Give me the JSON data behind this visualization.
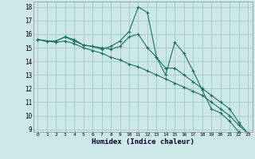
{
  "xlabel": "Humidex (Indice chaleur)",
  "bg_color": "#cce8e8",
  "grid_color": "#aacccc",
  "line_color": "#1a7060",
  "x_values": [
    0,
    1,
    2,
    3,
    4,
    5,
    6,
    7,
    8,
    9,
    10,
    11,
    12,
    13,
    14,
    15,
    16,
    17,
    18,
    19,
    20,
    21,
    22,
    23
  ],
  "series1": [
    15.6,
    15.5,
    15.5,
    15.8,
    15.6,
    15.2,
    15.1,
    14.9,
    15.1,
    15.5,
    16.2,
    18.0,
    17.6,
    14.3,
    13.0,
    15.4,
    14.6,
    13.3,
    11.9,
    10.5,
    10.2,
    9.6,
    8.8,
    8.7
  ],
  "series2": [
    15.6,
    15.5,
    15.5,
    15.8,
    15.5,
    15.2,
    15.1,
    15.0,
    14.9,
    15.1,
    15.8,
    16.0,
    15.0,
    14.3,
    13.5,
    13.5,
    13.0,
    12.5,
    12.0,
    11.5,
    11.0,
    10.5,
    9.5,
    8.7
  ],
  "series3": [
    15.6,
    15.5,
    15.4,
    15.5,
    15.3,
    15.0,
    14.8,
    14.6,
    14.3,
    14.1,
    13.8,
    13.6,
    13.3,
    13.0,
    12.7,
    12.4,
    12.1,
    11.8,
    11.5,
    11.0,
    10.5,
    10.0,
    9.3,
    8.7
  ],
  "ylim": [
    8.8,
    18.4
  ],
  "xlim": [
    -0.5,
    23.5
  ],
  "yticks": [
    9,
    10,
    11,
    12,
    13,
    14,
    15,
    16,
    17,
    18
  ],
  "xticks": [
    0,
    1,
    2,
    3,
    4,
    5,
    6,
    7,
    8,
    9,
    10,
    11,
    12,
    13,
    14,
    15,
    16,
    17,
    18,
    19,
    20,
    21,
    22,
    23
  ]
}
